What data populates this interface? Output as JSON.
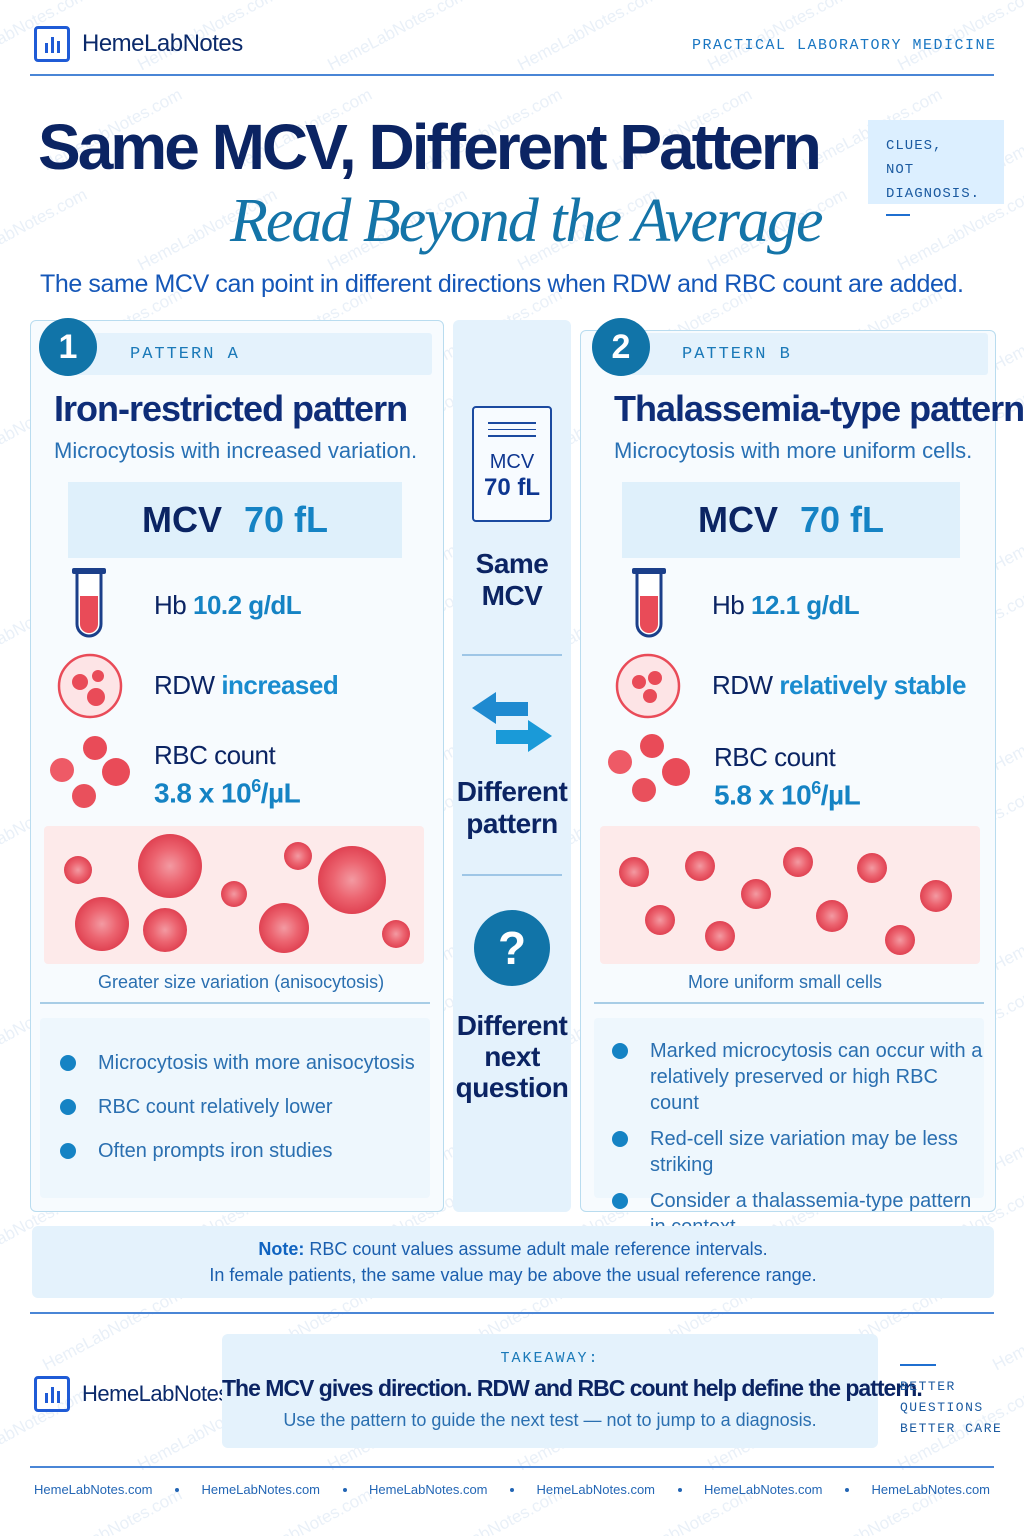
{
  "header": {
    "brand": "HemeLabNotes",
    "tag": "PRACTICAL LABORATORY MEDICINE"
  },
  "hero": {
    "title": "Same MCV, Different Pattern",
    "subtitle": "Read Beyond the Average",
    "clues_line1": "CLUES,",
    "clues_line2": "NOT DIAGNOSIS.",
    "intro": "The same MCV can point in different directions when RDW and RBC count are added."
  },
  "pattern_a": {
    "number": "1",
    "tag": "PATTERN A",
    "title": "Iron-restricted pattern",
    "subtitle": "Microcytosis with increased variation.",
    "mcv_label": "MCV",
    "mcv_value": "70 fL",
    "hb_label": "Hb",
    "hb_value": "10.2 g/dL",
    "rdw_label": "RDW",
    "rdw_value": "increased",
    "rbc_label": "RBC count",
    "rbc_value": "3.8 x 10",
    "rbc_exp": "6",
    "rbc_unit": "/µL",
    "caption": "Greater size variation (anisocytosis)",
    "bullets": [
      "Microcytosis with more anisocytosis",
      "RBC count relatively lower",
      "Often prompts iron studies"
    ]
  },
  "pattern_b": {
    "number": "2",
    "tag": "PATTERN B",
    "title": "Thalassemia-type pattern",
    "subtitle": "Microcytosis with more uniform cells.",
    "mcv_label": "MCV",
    "mcv_value": "70 fL",
    "hb_label": "Hb",
    "hb_value": "12.1 g/dL",
    "rdw_label": "RDW",
    "rdw_value": "relatively stable",
    "rbc_label": "RBC count",
    "rbc_value": "5.8 x 10",
    "rbc_exp": "6",
    "rbc_unit": "/µL",
    "caption": "More uniform small cells",
    "bullets": [
      [
        "Marked microcytosis can occur with a",
        "relatively preserved or high RBC count"
      ],
      [
        "Red-cell size variation may be less striking"
      ],
      [
        "Consider a thalassemia-type pattern",
        "in context"
      ]
    ]
  },
  "center": {
    "doc_line1": "MCV",
    "doc_line2": "70 fL",
    "same_1": "Same",
    "same_2": "MCV",
    "diff_1": "Different",
    "diff_2": "pattern",
    "q_mark": "?",
    "next_1": "Different",
    "next_2": "next",
    "next_3": "question"
  },
  "note": {
    "label": "Note:",
    "line1": "RBC count values assume adult male reference intervals.",
    "line2": "In female patients, the same value may be above the usual reference range."
  },
  "takeaway": {
    "label": "TAKEAWAY:",
    "main": "The MCV gives direction. RDW and RBC count help define the pattern.",
    "sub": "Use the pattern to guide the next test — not to jump to a diagnosis.",
    "better_1": "BETTER",
    "better_2": "QUESTIONS",
    "better_3": "BETTER CARE"
  },
  "footer": {
    "links": [
      "HemeLabNotes.com",
      "HemeLabNotes.com",
      "HemeLabNotes.com",
      "HemeLabNotes.com",
      "HemeLabNotes.com",
      "HemeLabNotes.com"
    ]
  },
  "watermark": "HemeLabNotes.com",
  "colors": {
    "navy": "#0b2463",
    "accent_blue": "#1583c4",
    "badge_teal": "#1174a8",
    "cell_red": "#e94b58",
    "smear_bg": "#fdeaea"
  }
}
